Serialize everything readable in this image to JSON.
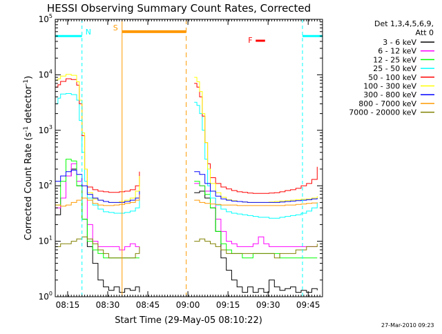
{
  "chart_data": {
    "type": "line",
    "title": "HESSI Observing Summary Count Rates, Corrected",
    "xlabel": "Start Time (29-May-05 08:10:22)",
    "ylabel_prefix": "Corrected Count Rate (s",
    "ylabel_sup1": "-1",
    "ylabel_mid": " detector",
    "ylabel_sup2": "-1",
    "ylabel_suffix": ")",
    "x_ticks": [
      "08:15",
      "08:30",
      "08:45",
      "09:00",
      "09:15",
      "09:30",
      "09:45"
    ],
    "x_tick_minutes": [
      4.633,
      19.633,
      34.633,
      49.633,
      64.633,
      79.633,
      94.633
    ],
    "xlim_minutes": [
      0,
      100
    ],
    "ylim": [
      1,
      100000
    ],
    "y_scale": "log",
    "y_ticks": [
      {
        "base": "10",
        "exp": "0",
        "value": 1
      },
      {
        "base": "10",
        "exp": "1",
        "value": 10
      },
      {
        "base": "10",
        "exp": "2",
        "value": 100
      },
      {
        "base": "10",
        "exp": "3",
        "value": 1000
      },
      {
        "base": "10",
        "exp": "4",
        "value": 10000
      },
      {
        "base": "10",
        "exp": "5",
        "value": 100000
      }
    ],
    "legend": {
      "header1": "Det 1,3,4,5,6,9,",
      "header2": "Att 0",
      "placement": "right"
    },
    "series": [
      {
        "name": "3 - 6 keV",
        "color": "#000000",
        "segments": [
          {
            "x": [
              0,
              2,
              4,
              6,
              8,
              10,
              12,
              14,
              16,
              18,
              20,
              22,
              24,
              26,
              28,
              30,
              31.5
            ],
            "y": [
              30,
              60,
              150,
              200,
              100,
              25,
              8,
              4,
              2,
              1.5,
              1.3,
              1.5,
              1.2,
              1.4,
              1.3,
              1.5,
              1.2
            ]
          },
          {
            "x": [
              52,
              54,
              56,
              58,
              60,
              62,
              64,
              66,
              68,
              70,
              72,
              74,
              76,
              78,
              80,
              82,
              84,
              86,
              88,
              90,
              92,
              94,
              96,
              98
            ],
            "y": [
              75,
              80,
              60,
              40,
              15,
              5,
              3,
              2,
              1.5,
              1.2,
              1.5,
              1.2,
              1.4,
              1.2,
              2,
              1.5,
              1.3,
              1.4,
              1.5,
              1.2,
              1.3,
              1.2,
              1.4,
              1.3
            ]
          }
        ]
      },
      {
        "name": "6 - 12 keV",
        "color": "#ff00ff",
        "segments": [
          {
            "x": [
              0,
              2,
              4,
              6,
              8,
              10,
              12,
              14,
              16,
              18,
              20,
              22,
              24,
              26,
              28,
              30,
              31.5
            ],
            "y": [
              40,
              60,
              150,
              250,
              120,
              60,
              20,
              10,
              8,
              8,
              8,
              8,
              7,
              8,
              9,
              8,
              8
            ]
          },
          {
            "x": [
              52,
              54,
              56,
              58,
              60,
              62,
              64,
              66,
              68,
              70,
              72,
              74,
              76,
              78,
              80,
              82,
              84,
              86,
              88,
              90,
              92,
              94,
              96,
              98
            ],
            "y": [
              110,
              100,
              80,
              60,
              25,
              15,
              10,
              9,
              8,
              8,
              8,
              9,
              12,
              9,
              8,
              8,
              8,
              8,
              8,
              8,
              8,
              8,
              8,
              8
            ]
          }
        ]
      },
      {
        "name": "12 - 25 keV",
        "color": "#00ff00",
        "segments": [
          {
            "x": [
              0,
              2,
              4,
              6,
              8,
              10,
              12,
              14,
              16,
              18,
              20,
              22,
              24,
              26,
              28,
              30,
              31.5
            ],
            "y": [
              45,
              120,
              300,
              280,
              100,
              25,
              10,
              7,
              6,
              5,
              5,
              5,
              5,
              5,
              5,
              5,
              5
            ]
          },
          {
            "x": [
              52,
              54,
              56,
              58,
              60,
              62,
              64,
              66,
              68,
              70,
              72,
              74,
              76,
              78,
              80,
              82,
              84,
              86,
              88,
              90,
              92,
              94,
              96,
              98
            ],
            "y": [
              120,
              100,
              70,
              40,
              15,
              9,
              7,
              6,
              6,
              5,
              5,
              6,
              6,
              6,
              6,
              6,
              5,
              5,
              5,
              5,
              5,
              5,
              5,
              5
            ]
          }
        ]
      },
      {
        "name": "25 - 50 keV",
        "color": "#00ffff",
        "segments": [
          {
            "x": [
              0,
              1,
              2,
              4,
              6,
              8,
              9,
              10,
              11,
              12,
              14,
              16,
              18,
              20,
              22,
              24,
              26,
              28,
              30,
              31.5
            ],
            "y": [
              3000,
              3800,
              4500,
              4600,
              4400,
              3500,
              1500,
              400,
              120,
              60,
              45,
              38,
              34,
              33,
              32,
              32,
              33,
              35,
              40,
              60
            ]
          },
          {
            "x": [
              52,
              53,
              54,
              55,
              56,
              57,
              58,
              60,
              62,
              64,
              66,
              68,
              70,
              72,
              74,
              76,
              78,
              80,
              82,
              84,
              86,
              88,
              90,
              92,
              94,
              96,
              98
            ],
            "y": [
              3200,
              2800,
              2000,
              1000,
              300,
              100,
              60,
              45,
              38,
              34,
              32,
              31,
              30,
              29,
              28,
              27,
              27,
              26,
              26,
              27,
              28,
              29,
              30,
              32,
              35,
              40,
              50
            ]
          }
        ]
      },
      {
        "name": "50 - 100 keV",
        "color": "#ff0000",
        "segments": [
          {
            "x": [
              0,
              1,
              2,
              4,
              6,
              8,
              9,
              10,
              11,
              12,
              14,
              16,
              18,
              20,
              22,
              24,
              26,
              28,
              30,
              31.5
            ],
            "y": [
              6000,
              6600,
              7600,
              8500,
              8200,
              6500,
              3000,
              800,
              200,
              95,
              85,
              80,
              78,
              76,
              76,
              78,
              80,
              85,
              100,
              180
            ]
          },
          {
            "x": [
              52,
              53,
              54,
              55,
              56,
              57,
              58,
              60,
              62,
              64,
              66,
              68,
              70,
              72,
              74,
              76,
              78,
              80,
              82,
              84,
              86,
              88,
              90,
              92,
              94,
              96,
              98
            ],
            "y": [
              7000,
              6000,
              4000,
              1800,
              600,
              250,
              140,
              110,
              95,
              88,
              82,
              78,
              76,
              74,
              73,
              73,
              73,
              74,
              75,
              78,
              82,
              85,
              90,
              100,
              110,
              130,
              220
            ]
          }
        ]
      },
      {
        "name": "100 - 300 keV",
        "color": "#ffff00",
        "segments": [
          {
            "x": [
              0,
              1,
              2,
              4,
              6,
              8,
              9,
              10,
              11,
              12,
              14,
              16,
              18,
              20,
              22,
              24,
              26,
              28,
              30,
              31.5
            ],
            "y": [
              8000,
              8500,
              9500,
              10200,
              9800,
              7500,
              3500,
              900,
              200,
              75,
              58,
              55,
              52,
              50,
              50,
              52,
              55,
              60,
              80,
              150
            ]
          },
          {
            "x": [
              52,
              53,
              54,
              55,
              56,
              57,
              58,
              60,
              62,
              64,
              66,
              68,
              70,
              72,
              74,
              76,
              78,
              80,
              82,
              84,
              86,
              88,
              90,
              92,
              94,
              96,
              98
            ],
            "y": [
              9000,
              7500,
              5000,
              2000,
              600,
              200,
              110,
              75,
              62,
              56,
              54,
              52,
              51,
              50,
              50,
              50,
              50,
              51,
              52,
              53,
              54,
              55,
              56,
              57,
              58,
              60,
              65
            ]
          }
        ]
      },
      {
        "name": "300 - 800 keV",
        "color": "#0000ff",
        "segments": [
          {
            "x": [
              0,
              2,
              4,
              6,
              8,
              10,
              12,
              14,
              16,
              18,
              20,
              22,
              24,
              26,
              28,
              30,
              31.5
            ],
            "y": [
              120,
              150,
              180,
              190,
              160,
              100,
              70,
              60,
              55,
              52,
              50,
              50,
              50,
              52,
              55,
              60,
              80
            ]
          },
          {
            "x": [
              52,
              54,
              56,
              58,
              60,
              62,
              64,
              66,
              68,
              70,
              72,
              74,
              76,
              78,
              80,
              82,
              84,
              86,
              88,
              90,
              92,
              94,
              96,
              98
            ],
            "y": [
              180,
              160,
              110,
              80,
              65,
              58,
              55,
              53,
              52,
              51,
              50,
              50,
              50,
              50,
              50,
              50,
              51,
              52,
              53,
              54,
              55,
              56,
              58,
              60
            ]
          }
        ]
      },
      {
        "name": "800 - 7000 keV",
        "color": "#ff9900",
        "segments": [
          {
            "x": [
              0,
              2,
              4,
              6,
              8,
              10,
              12,
              14,
              16,
              18,
              20,
              22,
              24,
              26,
              28,
              30,
              31.5
            ],
            "y": [
              45,
              43,
              45,
              50,
              55,
              60,
              55,
              48,
              45,
              44,
              44,
              45,
              46,
              48,
              50,
              55,
              70
            ]
          },
          {
            "x": [
              52,
              54,
              56,
              58,
              60,
              62,
              64,
              66,
              68,
              70,
              72,
              74,
              76,
              78,
              80,
              82,
              84,
              86,
              88,
              90,
              92,
              94,
              96,
              98
            ],
            "y": [
              55,
              50,
              48,
              47,
              46,
              45,
              45,
              45,
              44,
              44,
              44,
              44,
              44,
              44,
              44,
              44,
              44,
              45,
              45,
              46,
              47,
              48,
              49,
              50
            ]
          }
        ]
      },
      {
        "name": "7000 - 20000 keV",
        "color": "#808000",
        "segments": [
          {
            "x": [
              0,
              2,
              4,
              6,
              8,
              10,
              12,
              14,
              16,
              18,
              20,
              22,
              24,
              26,
              28,
              30,
              31.5
            ],
            "y": [
              8,
              9,
              9,
              10,
              11,
              12,
              11,
              9,
              7,
              6,
              5,
              5,
              5,
              5,
              5,
              6,
              8
            ]
          },
          {
            "x": [
              52,
              54,
              56,
              58,
              60,
              62,
              64,
              66,
              68,
              70,
              72,
              74,
              76,
              78,
              80,
              82,
              84,
              86,
              88,
              90,
              92,
              94,
              96,
              98
            ],
            "y": [
              10,
              11,
              10,
              9,
              8,
              7,
              6,
              6,
              6,
              6,
              6,
              6,
              6,
              6,
              6,
              5,
              6,
              6,
              6,
              7,
              7,
              8,
              8,
              9
            ]
          }
        ]
      }
    ],
    "annotations": {
      "night_marker": "N",
      "saa_marker": "S",
      "flare_marker": "F",
      "night_color": "#00ffff",
      "saa_color": "#ff9900",
      "flare_color": "#ff0000",
      "night_level": 50000,
      "saa_level": 60000,
      "night_intervals": [
        [
          0,
          10
        ],
        [
          92.5,
          100
        ]
      ],
      "saa_interval": [
        25,
        49
      ],
      "flare_interval": [
        75,
        78.5
      ]
    }
  },
  "footer": {
    "timestamp": "27-Mar-2010 09:23"
  }
}
